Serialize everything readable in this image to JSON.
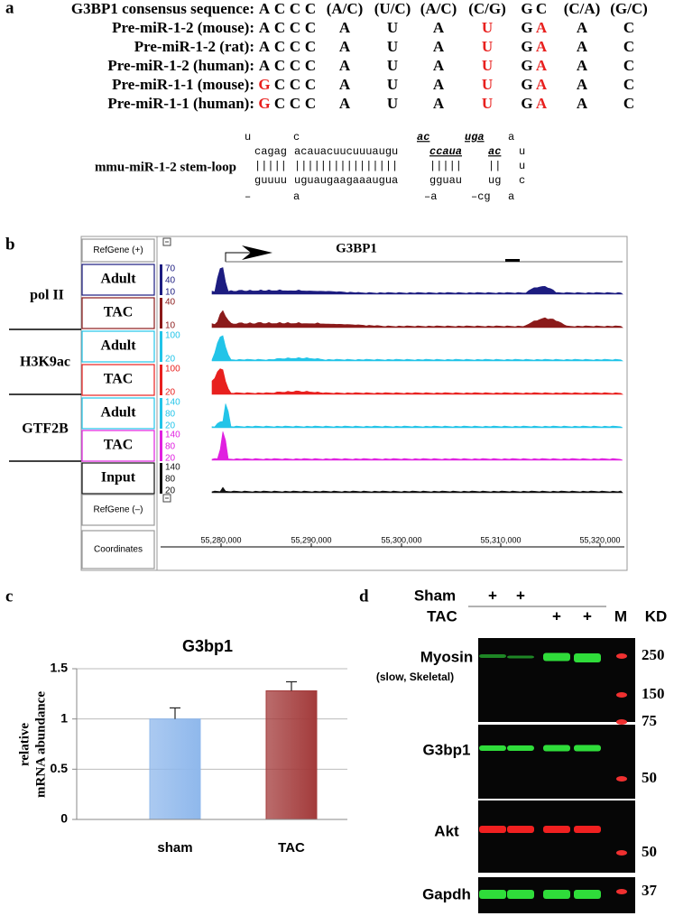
{
  "panel_labels": [
    "a",
    "b",
    "c",
    "d"
  ],
  "panel_a": {
    "consensus": {
      "label": "G3BP1 consensus sequence:",
      "columns": [
        "A",
        "C",
        "C",
        "C",
        "(A/C)",
        "(U/C)",
        "(A/C)",
        "(C/G)",
        "G",
        "C",
        "(C/A)",
        "(G/C)"
      ]
    },
    "rows": [
      {
        "label": "Pre-miR-1-2 (mouse):",
        "letters": [
          "A",
          "C",
          "C",
          "C",
          "A",
          "U",
          "A",
          "U",
          "G",
          "A",
          "A",
          "C"
        ],
        "highlight": [
          7,
          9
        ]
      },
      {
        "label": "Pre-miR-1-2 (rat):",
        "letters": [
          "A",
          "C",
          "C",
          "C",
          "A",
          "U",
          "A",
          "U",
          "G",
          "A",
          "A",
          "C"
        ],
        "highlight": [
          7,
          9
        ]
      },
      {
        "label": "Pre-miR-1-2 (human):",
        "letters": [
          "A",
          "C",
          "C",
          "C",
          "A",
          "U",
          "A",
          "U",
          "G",
          "A",
          "A",
          "C"
        ],
        "highlight": [
          7,
          9
        ]
      },
      {
        "label": "Pre-miR-1-1 (mouse):",
        "letters": [
          "G",
          "C",
          "C",
          "C",
          "A",
          "U",
          "A",
          "U",
          "G",
          "A",
          "A",
          "C"
        ],
        "highlight": [
          0,
          7,
          9
        ]
      },
      {
        "label": "Pre-miR-1-1 (human):",
        "letters": [
          "G",
          "C",
          "C",
          "C",
          "A",
          "U",
          "A",
          "U",
          "G",
          "A",
          "A",
          "C"
        ],
        "highlight": [
          0,
          7,
          9
        ]
      }
    ],
    "highlight_color": "#e8201e",
    "stem_loop": {
      "label": "mmu-miR-1-2 stem-loop",
      "lines": [
        [
          "u",
          "c",
          "ac",
          "uga",
          "a"
        ],
        [
          "cagag",
          "acauacuucuuuaugu",
          "ccaua",
          "ac",
          "u"
        ],
        [
          "|||||",
          "||||||||||||||||",
          "|||||",
          "||",
          "u"
        ],
        [
          "guuuu",
          "uguaugaagaaaugua",
          "gguau",
          "ug",
          "c"
        ],
        [
          "–",
          "a",
          "–a",
          "–cg",
          "a"
        ]
      ]
    }
  },
  "panel_b": {
    "gene": "G3BP1",
    "refgene_plus": "RefGene (+)",
    "refgene_minus": "RefGene (–)",
    "coordinates_label": "Coordinates",
    "groups": [
      "pol II",
      "H3K9ac",
      "GTF2B"
    ],
    "tracks": [
      {
        "label": "Adult",
        "color": "#1c1c80",
        "scale": [
          "70",
          "40",
          "10"
        ]
      },
      {
        "label": "TAC",
        "color": "#8b1a1a",
        "scale": [
          "40",
          "10"
        ]
      },
      {
        "label": "Adult",
        "color": "#22c4e8",
        "scale": [
          "100",
          "20"
        ]
      },
      {
        "label": "TAC",
        "color": "#e8201e",
        "scale": [
          "100",
          "20"
        ]
      },
      {
        "label": "Adult",
        "color": "#22c4e8",
        "scale": [
          "140",
          "80",
          "20"
        ]
      },
      {
        "label": "TAC",
        "color": "#e020e0",
        "scale": [
          "140",
          "80",
          "20"
        ]
      },
      {
        "label": "Input",
        "color": "#111111",
        "scale": [
          "140",
          "80",
          "20"
        ]
      }
    ],
    "coordinates": [
      "55,280,000",
      "55,290,000",
      "55,300,000",
      "55,310,000",
      "55,320,000"
    ]
  },
  "chart_data": {
    "type": "bar",
    "title": "G3bp1",
    "ylabel": [
      "relative",
      "mRNA abundance"
    ],
    "categories": [
      "sham",
      "TAC"
    ],
    "values": [
      1,
      1.28
    ],
    "errors": [
      0.11,
      0.09
    ],
    "colors": [
      "#8fb8ec",
      "#a33b3b"
    ],
    "ylim": [
      0,
      1.5
    ],
    "yticks": [
      0,
      0.5,
      1,
      1.5
    ],
    "grid": true
  },
  "panel_d": {
    "sham": "Sham",
    "tac": "TAC",
    "plus": [
      "+",
      "+",
      "+",
      "+"
    ],
    "marker": "M",
    "kd": "KD",
    "blots": [
      {
        "label": "Myosin",
        "sublabel": "(slow, Skeletal)",
        "color": "#2fdc3a"
      },
      {
        "label": "G3bp1",
        "color": "#2fdc3a"
      },
      {
        "label": "Akt",
        "color": "#f02020"
      },
      {
        "label": "Gapdh",
        "color": "#2fdc3a"
      }
    ],
    "sizes": [
      "250",
      "150",
      "75",
      "50",
      "50",
      "37"
    ]
  }
}
